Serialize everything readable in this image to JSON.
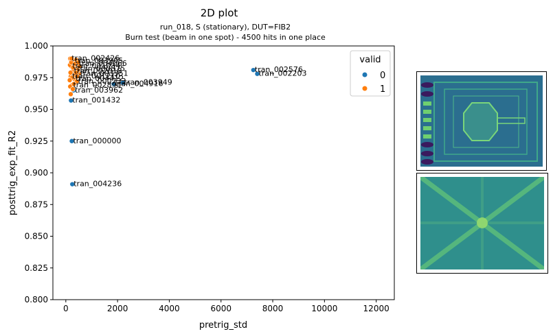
{
  "figure": {
    "title": "2D plot",
    "subtitle_line1": "run_018, S (stationary), DUT=FIB2",
    "subtitle_line2": "Burn test (beam in one spot) - 4500 hits in one place"
  },
  "chart_data": {
    "type": "scatter",
    "xlabel": "pretrig_std",
    "ylabel": "posttrig_exp_fit_R2",
    "xlim": [
      -500,
      12700
    ],
    "ylim": [
      0.8,
      1.0
    ],
    "xticks": [
      0,
      2000,
      4000,
      6000,
      8000,
      10000,
      12000
    ],
    "yticks": [
      0.8,
      0.825,
      0.85,
      0.875,
      0.9,
      0.925,
      0.95,
      0.975,
      1.0
    ],
    "ytick_labels": [
      "0.800",
      "0.825",
      "0.850",
      "0.875",
      "0.900",
      "0.925",
      "0.950",
      "0.975",
      "1.000"
    ],
    "legend": {
      "title": "valid",
      "position": "top-right",
      "entries": [
        "0",
        "1"
      ]
    },
    "series": [
      {
        "name": "0",
        "color": "#1f77b4",
        "points": [
          {
            "x": 200,
            "y": 0.957,
            "label": "tran_001432"
          },
          {
            "x": 230,
            "y": 0.925,
            "label": "tran_000000"
          },
          {
            "x": 250,
            "y": 0.891,
            "label": "tran_004236"
          },
          {
            "x": 7250,
            "y": 0.981,
            "label": "tran_002576"
          },
          {
            "x": 7400,
            "y": 0.978,
            "label": "tran_002203"
          },
          {
            "x": 2200,
            "y": 0.971,
            "label": "tran_003949"
          },
          {
            "x": 1850,
            "y": 0.97,
            "label": "tran_004916"
          },
          {
            "x": 300,
            "y": 0.965,
            "label": "tran_003962"
          }
        ]
      },
      {
        "name": "1",
        "color": "#ff7f0e",
        "points": [
          {
            "x": 170,
            "y": 0.99,
            "label": "tran_002426"
          },
          {
            "x": 300,
            "y": 0.988,
            "label": "tran_003905"
          },
          {
            "x": 450,
            "y": 0.986,
            "label": "tran_004066"
          },
          {
            "x": 200,
            "y": 0.984,
            "label": "tran_001034"
          },
          {
            "x": 380,
            "y": 0.982,
            "label": "tran_000875"
          },
          {
            "x": 260,
            "y": 0.98,
            "label": "tran_002018"
          },
          {
            "x": 500,
            "y": 0.978,
            "label": "tran_003351"
          },
          {
            "x": 190,
            "y": 0.976,
            "label": "tran_001210"
          },
          {
            "x": 330,
            "y": 0.974,
            "label": "tran_004412"
          },
          {
            "x": 420,
            "y": 0.972,
            "label": "tran_000733"
          },
          {
            "x": 230,
            "y": 0.969,
            "label": "tran_002890"
          },
          {
            "x": 160,
            "y": 0.985,
            "label": ""
          },
          {
            "x": 180,
            "y": 0.979,
            "label": ""
          },
          {
            "x": 210,
            "y": 0.987,
            "label": ""
          },
          {
            "x": 240,
            "y": 0.975,
            "label": ""
          },
          {
            "x": 280,
            "y": 0.983,
            "label": ""
          },
          {
            "x": 350,
            "y": 0.977,
            "label": ""
          },
          {
            "x": 400,
            "y": 0.989,
            "label": ""
          },
          {
            "x": 470,
            "y": 0.981,
            "label": ""
          },
          {
            "x": 520,
            "y": 0.984,
            "label": ""
          },
          {
            "x": 150,
            "y": 0.973,
            "label": ""
          },
          {
            "x": 170,
            "y": 0.968,
            "label": ""
          },
          {
            "x": 310,
            "y": 0.97,
            "label": ""
          },
          {
            "x": 360,
            "y": 0.986,
            "label": ""
          },
          {
            "x": 440,
            "y": 0.976,
            "label": ""
          },
          {
            "x": 190,
            "y": 0.962,
            "label": ""
          },
          {
            "x": 270,
            "y": 0.966,
            "label": ""
          },
          {
            "x": 390,
            "y": 0.979,
            "label": ""
          },
          {
            "x": 480,
            "y": 0.987,
            "label": ""
          },
          {
            "x": 220,
            "y": 0.99,
            "label": ""
          }
        ]
      }
    ]
  },
  "images": {
    "top": "detector die microscope image",
    "bottom": "cross-shaped burn pattern image"
  }
}
